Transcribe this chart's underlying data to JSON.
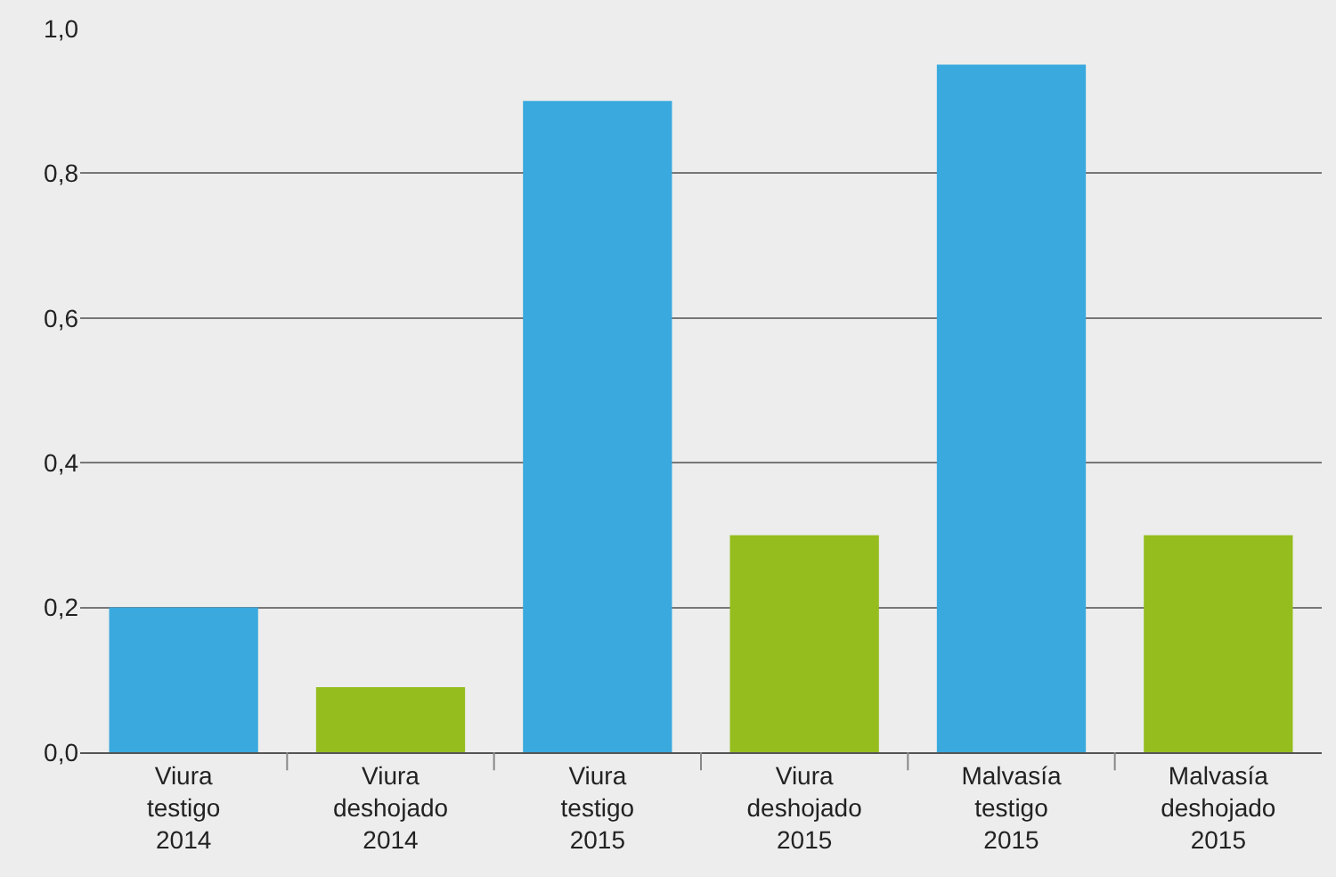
{
  "chart_data": {
    "type": "bar",
    "categories": [
      "Viura\ntestigo\n2014",
      "Viura\ndeshojado\n2014",
      "Viura\ntestigo\n2015",
      "Viura\ndeshojado\n2015",
      "Malvasía\ntestigo\n2015",
      "Malvasía\ndeshojado\n2015"
    ],
    "values": [
      0.2,
      0.09,
      0.9,
      0.3,
      0.95,
      0.3
    ],
    "colors": [
      "#3aa9de",
      "#95bd1e",
      "#3aa9de",
      "#95bd1e",
      "#3aa9de",
      "#95bd1e"
    ],
    "ylim": [
      0,
      1.0
    ],
    "yticks": [
      {
        "value": 0,
        "label": "0,0"
      },
      {
        "value": 0.2,
        "label": "0,2"
      },
      {
        "value": 0.4,
        "label": "0,4"
      },
      {
        "value": 0.6,
        "label": "0,6"
      },
      {
        "value": 0.8,
        "label": "0,8"
      },
      {
        "value": 1.0,
        "label": "1,0"
      }
    ],
    "grid": "y"
  }
}
